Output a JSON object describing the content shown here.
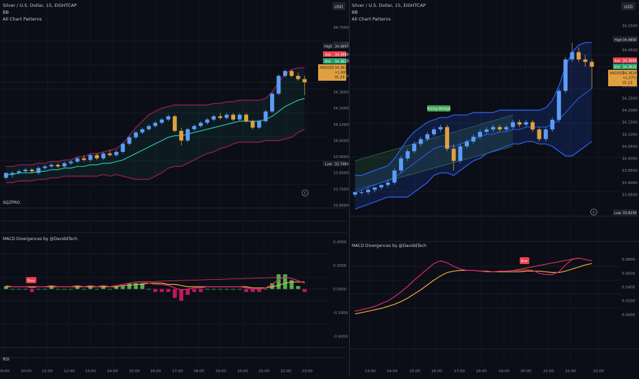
{
  "left_pane": {
    "header": {
      "symbol": "Silver / U.S. Dollar, 15, EIGHTCAP",
      "indicator1": "BB",
      "indicator2": "All Chart Patterns"
    },
    "currency": "USD",
    "price_scale": [
      "34.7000",
      "34.6000",
      "34.5000",
      "34.4000",
      "34.3000",
      "34.2000",
      "34.1000",
      "34.0000",
      "33.9000",
      "33.8000",
      "33.7000",
      "33.6000"
    ],
    "tags": {
      "high_label": "High",
      "high_value": "34.4890",
      "ask_label": "Ask",
      "ask_value": "34.3680",
      "bid_label": "Bid",
      "bid_value": "34.3620",
      "symbol_label": "XAGUSD",
      "price": "34.3620",
      "change": "+1.69%",
      "countdown": "01:24",
      "low_label": "Low",
      "low_value": "33.7480"
    },
    "sqzpro_label": "SQZPRO",
    "macd_label": "MACD Divergences by @DaviddTech",
    "macd_scale": [
      "0.4000",
      "0.2000",
      "0.0000",
      "-0.2000",
      "-0.4000"
    ],
    "macd_signal": "Bear",
    "rsi_label": "RSI",
    "time_axis": [
      "09:00",
      "10:00",
      "11:00",
      "12:00",
      "13:00",
      "14:00",
      "15:00",
      "16:00",
      "17:00",
      "18:00",
      "19:00",
      "20:00",
      "21:00",
      "22:00",
      "23:00"
    ],
    "tv_glyph": "F"
  },
  "right_pane": {
    "header": {
      "symbol": "Silver / U.S. Dollar, 15, EIGHTCAP",
      "indicator1": "BB",
      "indicator2": "All Chart Patterns"
    },
    "currency": "USD",
    "price_scale": [
      "34.5500",
      "34.5000",
      "34.4500",
      "34.4000",
      "34.3500",
      "34.3000",
      "34.2500",
      "34.2000",
      "34.1500",
      "34.1000",
      "34.0500",
      "34.0000",
      "33.9500",
      "33.9000",
      "33.8500"
    ],
    "tags": {
      "high_label": "High",
      "high_value": "34.4890",
      "ask_label": "Ask",
      "ask_value": "34.3680",
      "bid_label": "Bid",
      "bid_value": "34.3620",
      "symbol_label": "XAGUSD",
      "price": "34.3620",
      "change": "+1.57%",
      "countdown": "01:23",
      "low_label": "Low",
      "low_value": "33.8230"
    },
    "pattern_label": "Rising Wedge",
    "macd_label": "MACD Divergences by @DaviddTech",
    "macd_scale": [
      "0.0800",
      "0.0600",
      "0.0400",
      "0.0200",
      "0.0000"
    ],
    "macd_signal": "Bear",
    "time_axis": [
      "13:00",
      "14:00",
      "15:00",
      "16:00",
      "17:00",
      "18:00",
      "19:00",
      "20:00",
      "21:00",
      "22:00",
      "23:00"
    ],
    "tv_glyph": "F"
  },
  "colors": {
    "bull": "#5b9cf6",
    "bear": "#e0a040",
    "macd_line": "#d6286a",
    "signal_line": "#f5b041",
    "bb_basis": "#2ec4b6",
    "ask": "#e8414f",
    "bid": "#26a269"
  },
  "chart_data": [
    {
      "type": "candlestick",
      "pane": "left",
      "ylim": [
        33.6,
        34.7
      ],
      "candles": [
        [
          33.77,
          33.8,
          33.76,
          33.8
        ],
        [
          33.79,
          33.81,
          33.77,
          33.8
        ],
        [
          33.8,
          33.82,
          33.79,
          33.81
        ],
        [
          33.81,
          33.83,
          33.8,
          33.82
        ],
        [
          33.82,
          33.83,
          33.8,
          33.81
        ],
        [
          33.8,
          33.84,
          33.79,
          33.83
        ],
        [
          33.83,
          33.85,
          33.82,
          33.84
        ],
        [
          33.84,
          33.86,
          33.83,
          33.85
        ],
        [
          33.85,
          33.86,
          33.83,
          33.84
        ],
        [
          33.84,
          33.87,
          33.83,
          33.86
        ],
        [
          33.86,
          33.88,
          33.85,
          33.87
        ],
        [
          33.87,
          33.9,
          33.86,
          33.89
        ],
        [
          33.89,
          33.91,
          33.87,
          33.88
        ],
        [
          33.88,
          33.92,
          33.87,
          33.91
        ],
        [
          33.91,
          33.92,
          33.88,
          33.89
        ],
        [
          33.89,
          33.93,
          33.88,
          33.92
        ],
        [
          33.92,
          33.94,
          33.9,
          33.91
        ],
        [
          33.91,
          33.94,
          33.9,
          33.93
        ],
        [
          33.93,
          33.99,
          33.92,
          33.98
        ],
        [
          33.98,
          34.03,
          33.97,
          34.02
        ],
        [
          34.02,
          34.06,
          34.01,
          34.05
        ],
        [
          34.05,
          34.08,
          34.04,
          34.07
        ],
        [
          34.07,
          34.1,
          34.06,
          34.09
        ],
        [
          34.09,
          34.12,
          34.08,
          34.11
        ],
        [
          34.11,
          34.14,
          34.1,
          34.13
        ],
        [
          34.13,
          34.16,
          34.12,
          34.15
        ],
        [
          34.15,
          34.16,
          34.05,
          34.06
        ],
        [
          34.06,
          34.08,
          33.97,
          34.0
        ],
        [
          34.0,
          34.08,
          33.99,
          34.07
        ],
        [
          34.07,
          34.1,
          34.06,
          34.09
        ],
        [
          34.09,
          34.12,
          34.08,
          34.11
        ],
        [
          34.11,
          34.14,
          34.1,
          34.13
        ],
        [
          34.13,
          34.16,
          34.12,
          34.15
        ],
        [
          34.15,
          34.17,
          34.13,
          34.14
        ],
        [
          34.14,
          34.17,
          34.13,
          34.16
        ],
        [
          34.16,
          34.17,
          34.12,
          34.13
        ],
        [
          34.13,
          34.17,
          34.12,
          34.16
        ],
        [
          34.16,
          34.17,
          34.11,
          34.12
        ],
        [
          34.12,
          34.13,
          34.07,
          34.08
        ],
        [
          34.08,
          34.13,
          34.07,
          34.12
        ],
        [
          34.12,
          34.19,
          34.11,
          34.18
        ],
        [
          34.18,
          34.3,
          34.17,
          34.29
        ],
        [
          34.29,
          34.41,
          34.28,
          34.4
        ],
        [
          34.4,
          34.44,
          34.39,
          34.43
        ],
        [
          34.43,
          34.44,
          34.39,
          34.4
        ],
        [
          34.4,
          34.42,
          34.37,
          34.38
        ],
        [
          34.38,
          34.4,
          34.28,
          34.36
        ]
      ],
      "bb_basis": [
        33.79,
        33.79,
        33.8,
        33.8,
        33.8,
        33.81,
        33.81,
        33.82,
        33.82,
        33.83,
        33.83,
        33.84,
        33.84,
        33.85,
        33.85,
        33.86,
        33.86,
        33.87,
        33.88,
        33.9,
        33.92,
        33.94,
        33.96,
        33.98,
        34.0,
        34.02,
        34.03,
        34.03,
        34.04,
        34.05,
        34.06,
        34.07,
        34.08,
        34.09,
        34.1,
        34.11,
        34.12,
        34.12,
        34.12,
        34.12,
        34.13,
        34.15,
        34.18,
        34.21,
        34.23,
        34.25,
        34.26
      ],
      "bb_upper": [
        33.84,
        33.84,
        33.85,
        33.85,
        33.85,
        33.86,
        33.86,
        33.87,
        33.87,
        33.88,
        33.88,
        33.9,
        33.9,
        33.92,
        33.92,
        33.93,
        33.94,
        33.95,
        33.98,
        34.03,
        34.08,
        34.12,
        34.16,
        34.18,
        34.2,
        34.21,
        34.22,
        34.22,
        34.22,
        34.22,
        34.22,
        34.22,
        34.23,
        34.23,
        34.24,
        34.24,
        34.25,
        34.25,
        34.25,
        34.25,
        34.26,
        34.3,
        34.36,
        34.41,
        34.44,
        34.45,
        34.45
      ],
      "bb_lower": [
        33.74,
        33.74,
        33.75,
        33.75,
        33.75,
        33.76,
        33.76,
        33.77,
        33.77,
        33.78,
        33.78,
        33.78,
        33.78,
        33.78,
        33.78,
        33.79,
        33.78,
        33.79,
        33.78,
        33.77,
        33.76,
        33.76,
        33.76,
        33.78,
        33.8,
        33.83,
        33.84,
        33.84,
        33.86,
        33.88,
        33.9,
        33.92,
        33.93,
        33.95,
        33.96,
        33.98,
        33.99,
        33.99,
        33.99,
        33.99,
        34.0,
        34.0,
        34.0,
        34.01,
        34.02,
        34.05,
        34.07
      ],
      "macd_ylim": [
        -0.45,
        0.45
      ],
      "macd": [
        0.03,
        0.02,
        0.02,
        0.02,
        0.01,
        0.02,
        0.02,
        0.03,
        0.02,
        0.02,
        0.02,
        0.03,
        0.02,
        0.03,
        0.02,
        0.03,
        0.02,
        0.03,
        0.04,
        0.05,
        0.06,
        0.06,
        0.05,
        0.04,
        0.04,
        0.03,
        0.01,
        -0.01,
        0.0,
        0.01,
        0.01,
        0.02,
        0.02,
        0.02,
        0.02,
        0.02,
        0.02,
        0.01,
        0.0,
        0.0,
        0.01,
        0.04,
        0.08,
        0.1,
        0.09,
        0.07,
        0.05
      ],
      "signal": [
        0.02,
        0.02,
        0.02,
        0.02,
        0.02,
        0.02,
        0.02,
        0.02,
        0.02,
        0.02,
        0.02,
        0.02,
        0.02,
        0.02,
        0.02,
        0.02,
        0.02,
        0.02,
        0.03,
        0.03,
        0.04,
        0.04,
        0.05,
        0.05,
        0.05,
        0.04,
        0.04,
        0.03,
        0.02,
        0.02,
        0.02,
        0.02,
        0.02,
        0.02,
        0.02,
        0.02,
        0.02,
        0.02,
        0.01,
        0.01,
        0.01,
        0.02,
        0.03,
        0.05,
        0.06,
        0.06,
        0.06
      ]
    },
    {
      "type": "candlestick",
      "pane": "right",
      "ylim": [
        33.84,
        34.56
      ],
      "candles": [
        [
          33.85,
          33.86,
          33.84,
          33.86
        ],
        [
          33.86,
          33.87,
          33.85,
          33.86
        ],
        [
          33.86,
          33.88,
          33.85,
          33.87
        ],
        [
          33.87,
          33.88,
          33.86,
          33.88
        ],
        [
          33.88,
          33.89,
          33.87,
          33.89
        ],
        [
          33.89,
          33.91,
          33.88,
          33.9
        ],
        [
          33.9,
          33.96,
          33.89,
          33.95
        ],
        [
          33.95,
          34.01,
          33.94,
          34.0
        ],
        [
          34.0,
          34.04,
          33.99,
          34.03
        ],
        [
          34.03,
          34.07,
          34.02,
          34.06
        ],
        [
          34.06,
          34.09,
          34.05,
          34.08
        ],
        [
          34.08,
          34.11,
          34.07,
          34.1
        ],
        [
          34.1,
          34.13,
          34.09,
          34.12
        ],
        [
          34.12,
          34.14,
          34.11,
          34.13
        ],
        [
          34.13,
          34.14,
          34.03,
          34.04
        ],
        [
          34.04,
          34.06,
          33.95,
          33.99
        ],
        [
          33.99,
          34.06,
          33.98,
          34.05
        ],
        [
          34.05,
          34.08,
          34.04,
          34.07
        ],
        [
          34.07,
          34.1,
          34.06,
          34.09
        ],
        [
          34.09,
          34.12,
          34.08,
          34.11
        ],
        [
          34.11,
          34.13,
          34.1,
          34.12
        ],
        [
          34.12,
          34.14,
          34.11,
          34.13
        ],
        [
          34.13,
          34.14,
          34.11,
          34.12
        ],
        [
          34.12,
          34.14,
          34.11,
          34.13
        ],
        [
          34.13,
          34.16,
          34.12,
          34.15
        ],
        [
          34.15,
          34.16,
          34.13,
          34.14
        ],
        [
          34.14,
          34.16,
          34.13,
          34.15
        ],
        [
          34.15,
          34.16,
          34.11,
          34.12
        ],
        [
          34.12,
          34.13,
          34.07,
          34.08
        ],
        [
          34.08,
          34.13,
          34.07,
          34.12
        ],
        [
          34.12,
          34.17,
          34.11,
          34.16
        ],
        [
          34.16,
          34.29,
          34.15,
          34.28
        ],
        [
          34.28,
          34.42,
          34.27,
          34.41
        ],
        [
          34.41,
          34.48,
          34.4,
          34.44
        ],
        [
          34.44,
          34.46,
          34.4,
          34.41
        ],
        [
          34.41,
          34.43,
          34.38,
          34.4
        ],
        [
          34.4,
          34.41,
          34.29,
          34.38
        ]
      ],
      "bb_basis": [
        33.86,
        33.87,
        33.88,
        33.89,
        33.9,
        33.91,
        33.92,
        33.94,
        33.96,
        33.98,
        34.0,
        34.02,
        34.04,
        34.05,
        34.05,
        34.05,
        34.06,
        34.07,
        34.08,
        34.09,
        34.1,
        34.1,
        34.11,
        34.11,
        34.12,
        34.12,
        34.13,
        34.13,
        34.13,
        34.13,
        34.14,
        34.16,
        34.19,
        34.22,
        34.25,
        34.27,
        34.29
      ],
      "bb_upper": [
        33.93,
        33.93,
        33.94,
        33.95,
        33.96,
        33.97,
        34.0,
        34.04,
        34.08,
        34.11,
        34.13,
        34.15,
        34.16,
        34.17,
        34.17,
        34.18,
        34.18,
        34.18,
        34.19,
        34.19,
        34.19,
        34.19,
        34.2,
        34.2,
        34.2,
        34.2,
        34.2,
        34.2,
        34.2,
        34.21,
        34.24,
        34.3,
        34.38,
        34.44,
        34.47,
        34.48,
        34.48
      ],
      "bb_lower": [
        33.79,
        33.8,
        33.81,
        33.82,
        33.83,
        33.84,
        33.84,
        33.84,
        33.84,
        33.86,
        33.88,
        33.9,
        33.93,
        33.94,
        33.94,
        33.93,
        33.95,
        33.97,
        33.99,
        34.0,
        34.02,
        34.03,
        34.04,
        34.05,
        34.06,
        34.06,
        34.07,
        34.07,
        34.06,
        34.06,
        34.05,
        34.03,
        34.01,
        34.01,
        34.03,
        34.05,
        34.07
      ],
      "rising_wedge": {
        "upper": [
          [
            0,
            33.99
          ],
          [
            24,
            34.18
          ]
        ],
        "lower": [
          [
            0,
            33.87
          ],
          [
            24,
            34.05
          ]
        ]
      },
      "macd_ylim": [
        -0.01,
        0.1
      ],
      "macd": [
        0.005,
        0.007,
        0.009,
        0.012,
        0.016,
        0.02,
        0.026,
        0.033,
        0.041,
        0.05,
        0.058,
        0.066,
        0.074,
        0.078,
        0.075,
        0.07,
        0.066,
        0.064,
        0.064,
        0.063,
        0.062,
        0.062,
        0.063,
        0.063,
        0.064,
        0.064,
        0.065,
        0.064,
        0.06,
        0.058,
        0.058,
        0.062,
        0.072,
        0.08,
        0.082,
        0.08,
        0.078
      ],
      "signal": [
        0.001,
        0.003,
        0.005,
        0.007,
        0.009,
        0.012,
        0.015,
        0.019,
        0.024,
        0.03,
        0.036,
        0.043,
        0.05,
        0.056,
        0.061,
        0.063,
        0.064,
        0.064,
        0.064,
        0.063,
        0.063,
        0.062,
        0.062,
        0.062,
        0.062,
        0.062,
        0.063,
        0.063,
        0.063,
        0.062,
        0.061,
        0.061,
        0.063,
        0.066,
        0.069,
        0.072,
        0.074
      ]
    }
  ]
}
